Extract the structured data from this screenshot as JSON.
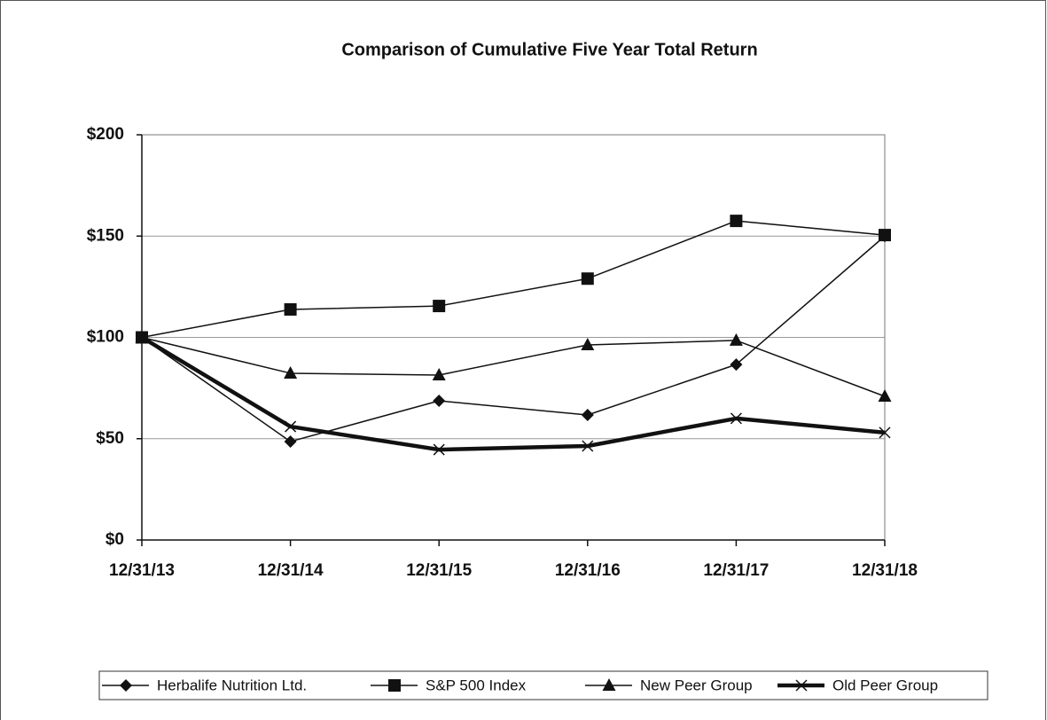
{
  "chart_data": {
    "type": "line",
    "title": "Comparison of Cumulative Five Year Total Return",
    "categories": [
      "12/31/13",
      "12/31/14",
      "12/31/15",
      "12/31/16",
      "12/31/17",
      "12/31/18"
    ],
    "series": [
      {
        "name": "Herbalife Nutrition Ltd.",
        "color": "#111111",
        "marker": "diamond",
        "line_width": 1.5,
        "values": [
          100,
          48.6,
          68.7,
          61.7,
          86.6,
          150
        ]
      },
      {
        "name": "S&P 500 Index",
        "color": "#111111",
        "marker": "square",
        "line_width": 1.5,
        "values": [
          100,
          113.8,
          115.5,
          129,
          157.5,
          150.5
        ]
      },
      {
        "name": "New Peer Group",
        "color": "#111111",
        "marker": "triangle",
        "line_width": 1.5,
        "values": [
          100,
          82.3,
          81.4,
          96.3,
          98.5,
          70.9
        ]
      },
      {
        "name": "Old Peer Group",
        "color": "#111111",
        "marker": "x",
        "line_width": 4.5,
        "values": [
          100,
          56,
          44.6,
          46.4,
          60,
          53
        ]
      }
    ],
    "ylim": [
      0,
      200
    ],
    "yticks": [
      {
        "value": 0,
        "label": "$0"
      },
      {
        "value": 50,
        "label": "$50"
      },
      {
        "value": 100,
        "label": "$100"
      },
      {
        "value": 150,
        "label": "$150"
      },
      {
        "value": 200,
        "label": "$200"
      }
    ],
    "grid": true,
    "legend": "bottom"
  }
}
